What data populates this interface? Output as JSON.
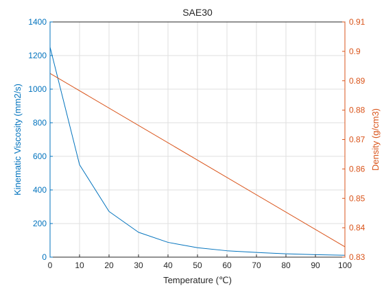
{
  "chart_data": {
    "type": "line",
    "title": "SAE30",
    "xlabel": "Temperature (℃)",
    "xlim": [
      0,
      100
    ],
    "x_ticks": [
      "0",
      "10",
      "20",
      "30",
      "40",
      "50",
      "60",
      "70",
      "80",
      "90",
      "100"
    ],
    "grid": true,
    "y_left": {
      "label": "Kinematic Viscosity (mm2/s)",
      "lim": [
        0,
        1400
      ],
      "ticks": [
        "0",
        "200",
        "400",
        "600",
        "800",
        "1000",
        "1200",
        "1400"
      ],
      "color": "#0072BD"
    },
    "y_right": {
      "label": "Density (g/cm3)",
      "lim": [
        0.83,
        0.91
      ],
      "ticks": [
        "0.83",
        "0.84",
        "0.85",
        "0.86",
        "0.87",
        "0.88",
        "0.89",
        "0.9",
        "0.91"
      ],
      "color": "#D95319"
    },
    "series": [
      {
        "axis": "left",
        "color": "#0072BD",
        "x": [
          0,
          10,
          20,
          30,
          40,
          50,
          60,
          70,
          80,
          90,
          100
        ],
        "values": [
          1250,
          550,
          272,
          148,
          88,
          56,
          38,
          28,
          20,
          15,
          11
        ]
      },
      {
        "axis": "right",
        "color": "#D95319",
        "x": [
          0,
          100
        ],
        "values": [
          0.8925,
          0.8335
        ]
      }
    ]
  }
}
